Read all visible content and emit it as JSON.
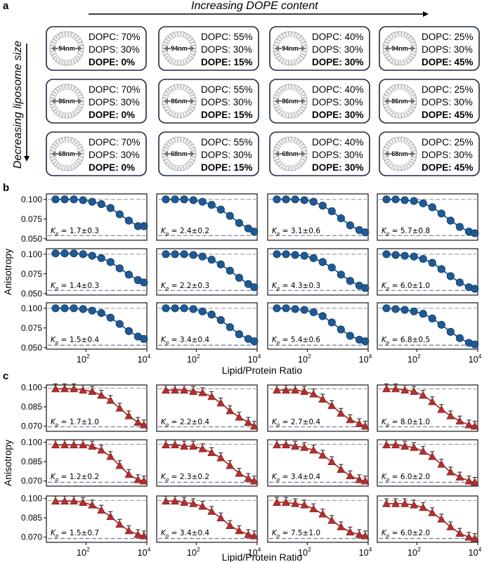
{
  "panel_labels": {
    "a": "a",
    "b": "b",
    "c": "c"
  },
  "panel_a": {
    "top_title": "Increasing DOPE content",
    "left_title": "Decreasing liposome size",
    "sizes": [
      "94nm",
      "86nm",
      "68nm"
    ],
    "compositions": [
      {
        "dopc": "DOPC: 70%",
        "dops": "DOPS: 30%",
        "dope": "DOPE: 0%"
      },
      {
        "dopc": "DOPC: 55%",
        "dops": "DOPS: 30%",
        "dope": "DOPE: 15%"
      },
      {
        "dopc": "DOPC: 40%",
        "dops": "DOPS: 30%",
        "dope": "DOPE: 30%"
      },
      {
        "dopc": "DOPC: 25%",
        "dops": "DOPS: 30%",
        "dope": "DOPE: 45%"
      }
    ]
  },
  "chart_data": [
    {
      "id": "b",
      "type": "scatter",
      "ylabel": "Anisotropy",
      "xlabel": "Lipid/Protein Ratio",
      "xscale": "log",
      "xlim": [
        5,
        10000
      ],
      "ylim": [
        0.048,
        0.107
      ],
      "yticks": [
        0.05,
        0.075,
        0.1
      ],
      "ytick_labels": [
        "0.050",
        "0.075",
        "0.100"
      ],
      "xticks": [
        100,
        10000
      ],
      "xtick_labels": [
        "10",
        "10"
      ],
      "xtick_exponents": [
        "2",
        "4"
      ],
      "color": "#1f5a94",
      "edge_color": "#123c66",
      "marker": "circle",
      "x": [
        10,
        20,
        40,
        80,
        160,
        320,
        640,
        1280,
        2560,
        5120,
        8000
      ],
      "panels": [
        {
          "kp": "1.7±0.3",
          "top": 0.1,
          "bottom": 0.054,
          "y": [
            0.1,
            0.1,
            0.1,
            0.099,
            0.097,
            0.094,
            0.089,
            0.081,
            0.073,
            0.066,
            0.066
          ]
        },
        {
          "kp": "2.4±0.2",
          "top": 0.1,
          "bottom": 0.054,
          "y": [
            0.1,
            0.1,
            0.1,
            0.099,
            0.097,
            0.093,
            0.087,
            0.079,
            0.07,
            0.063,
            0.059
          ]
        },
        {
          "kp": "3.1±0.6",
          "top": 0.1,
          "bottom": 0.054,
          "y": [
            0.1,
            0.1,
            0.1,
            0.099,
            0.097,
            0.092,
            0.085,
            0.076,
            0.067,
            0.061,
            0.058
          ]
        },
        {
          "kp": "5.7±0.8",
          "top": 0.1,
          "bottom": 0.054,
          "y": [
            0.1,
            0.1,
            0.099,
            0.098,
            0.095,
            0.09,
            0.082,
            0.073,
            0.065,
            0.059,
            0.057
          ]
        },
        {
          "kp": "1.4±0.3",
          "top": 0.1,
          "bottom": 0.054,
          "y": [
            0.101,
            0.101,
            0.101,
            0.1,
            0.098,
            0.095,
            0.09,
            0.082,
            0.074,
            0.067,
            0.064
          ]
        },
        {
          "kp": "2.2±0.3",
          "top": 0.1,
          "bottom": 0.054,
          "y": [
            0.1,
            0.1,
            0.1,
            0.099,
            0.097,
            0.093,
            0.087,
            0.079,
            0.07,
            0.062,
            0.058
          ]
        },
        {
          "kp": "4.3±0.3",
          "top": 0.1,
          "bottom": 0.054,
          "y": [
            0.1,
            0.1,
            0.099,
            0.098,
            0.095,
            0.09,
            0.083,
            0.074,
            0.066,
            0.06,
            0.057
          ]
        },
        {
          "kp": "6.0±1.0",
          "top": 0.1,
          "bottom": 0.054,
          "y": [
            0.1,
            0.099,
            0.098,
            0.097,
            0.094,
            0.089,
            0.081,
            0.072,
            0.064,
            0.058,
            0.056
          ]
        },
        {
          "kp": "1.5±0.4",
          "top": 0.1,
          "bottom": 0.053,
          "y": [
            0.1,
            0.1,
            0.1,
            0.099,
            0.097,
            0.094,
            0.088,
            0.08,
            0.071,
            0.064,
            0.061
          ]
        },
        {
          "kp": "3.4±0.4",
          "top": 0.1,
          "bottom": 0.053,
          "y": [
            0.1,
            0.1,
            0.1,
            0.099,
            0.096,
            0.092,
            0.085,
            0.076,
            0.067,
            0.061,
            0.058
          ]
        },
        {
          "kp": "5.4±0.6",
          "top": 0.1,
          "bottom": 0.053,
          "y": [
            0.1,
            0.1,
            0.099,
            0.098,
            0.095,
            0.09,
            0.082,
            0.073,
            0.065,
            0.06,
            0.058
          ]
        },
        {
          "kp": "6.8±0.5",
          "top": 0.1,
          "bottom": 0.053,
          "y": [
            0.1,
            0.099,
            0.098,
            0.096,
            0.093,
            0.087,
            0.079,
            0.07,
            0.062,
            0.056,
            0.054
          ]
        }
      ]
    },
    {
      "id": "c",
      "type": "scatter",
      "ylabel": "Anisotropy",
      "xlabel": "Lipid/Protein Ratio",
      "xscale": "log",
      "xlim": [
        5,
        10000
      ],
      "ylim": [
        0.066,
        0.102
      ],
      "yticks": [
        0.07,
        0.085,
        0.1
      ],
      "ytick_labels": [
        "0.070",
        "0.085",
        "0.100"
      ],
      "xticks": [
        100,
        10000
      ],
      "xtick_labels": [
        "10",
        "10"
      ],
      "xtick_exponents": [
        "2",
        "4"
      ],
      "color": "#b03030",
      "edge_color": "#7a1d1d",
      "marker": "triangle",
      "x": [
        10,
        20,
        40,
        80,
        160,
        320,
        640,
        1280,
        2560,
        5120,
        8000
      ],
      "panels": [
        {
          "kp": "1.7±1.0",
          "top": 0.0995,
          "bottom": 0.0695,
          "y": [
            0.099,
            0.099,
            0.099,
            0.098,
            0.097,
            0.094,
            0.09,
            0.084,
            0.078,
            0.073,
            0.071
          ]
        },
        {
          "kp": "2.2±0.4",
          "top": 0.099,
          "bottom": 0.0695,
          "y": [
            0.098,
            0.098,
            0.098,
            0.097,
            0.096,
            0.093,
            0.088,
            0.082,
            0.077,
            0.073,
            0.07
          ]
        },
        {
          "kp": "2.7±0.4",
          "top": 0.099,
          "bottom": 0.0695,
          "y": [
            0.098,
            0.098,
            0.098,
            0.097,
            0.095,
            0.091,
            0.086,
            0.08,
            0.075,
            0.072,
            0.07
          ]
        },
        {
          "kp": "8.0±1.0",
          "top": 0.099,
          "bottom": 0.0695,
          "y": [
            0.099,
            0.099,
            0.098,
            0.097,
            0.094,
            0.089,
            0.083,
            0.078,
            0.074,
            0.071,
            0.07
          ]
        },
        {
          "kp": "1.2±0.2",
          "top": 0.0985,
          "bottom": 0.069,
          "y": [
            0.098,
            0.098,
            0.098,
            0.098,
            0.097,
            0.094,
            0.089,
            0.082,
            0.075,
            0.071,
            0.07
          ]
        },
        {
          "kp": "2.3±0.2",
          "top": 0.0985,
          "bottom": 0.069,
          "y": [
            0.098,
            0.098,
            0.097,
            0.097,
            0.095,
            0.092,
            0.088,
            0.082,
            0.076,
            0.072,
            0.07
          ]
        },
        {
          "kp": "3.4±0.4",
          "top": 0.0985,
          "bottom": 0.069,
          "y": [
            0.098,
            0.098,
            0.097,
            0.096,
            0.094,
            0.09,
            0.085,
            0.079,
            0.074,
            0.071,
            0.07
          ]
        },
        {
          "kp": "6.0±2.0",
          "top": 0.0985,
          "bottom": 0.069,
          "y": [
            0.098,
            0.098,
            0.097,
            0.096,
            0.093,
            0.089,
            0.083,
            0.077,
            0.073,
            0.07,
            0.069
          ]
        },
        {
          "kp": "1.5±0.7",
          "top": 0.0985,
          "bottom": 0.069,
          "y": [
            0.098,
            0.098,
            0.098,
            0.097,
            0.095,
            0.091,
            0.086,
            0.08,
            0.075,
            0.072,
            0.071
          ]
        },
        {
          "kp": "3.4±0.4",
          "top": 0.0985,
          "bottom": 0.069,
          "y": [
            0.098,
            0.098,
            0.097,
            0.096,
            0.094,
            0.09,
            0.085,
            0.079,
            0.075,
            0.072,
            0.071
          ]
        },
        {
          "kp": "7.5±1.0",
          "top": 0.0985,
          "bottom": 0.069,
          "y": [
            0.097,
            0.097,
            0.096,
            0.095,
            0.092,
            0.088,
            0.083,
            0.078,
            0.074,
            0.072,
            0.071
          ]
        },
        {
          "kp": "6.0±2.0",
          "top": 0.0985,
          "bottom": 0.069,
          "y": [
            0.096,
            0.096,
            0.096,
            0.095,
            0.093,
            0.089,
            0.084,
            0.078,
            0.073,
            0.07,
            0.069
          ]
        }
      ]
    }
  ]
}
